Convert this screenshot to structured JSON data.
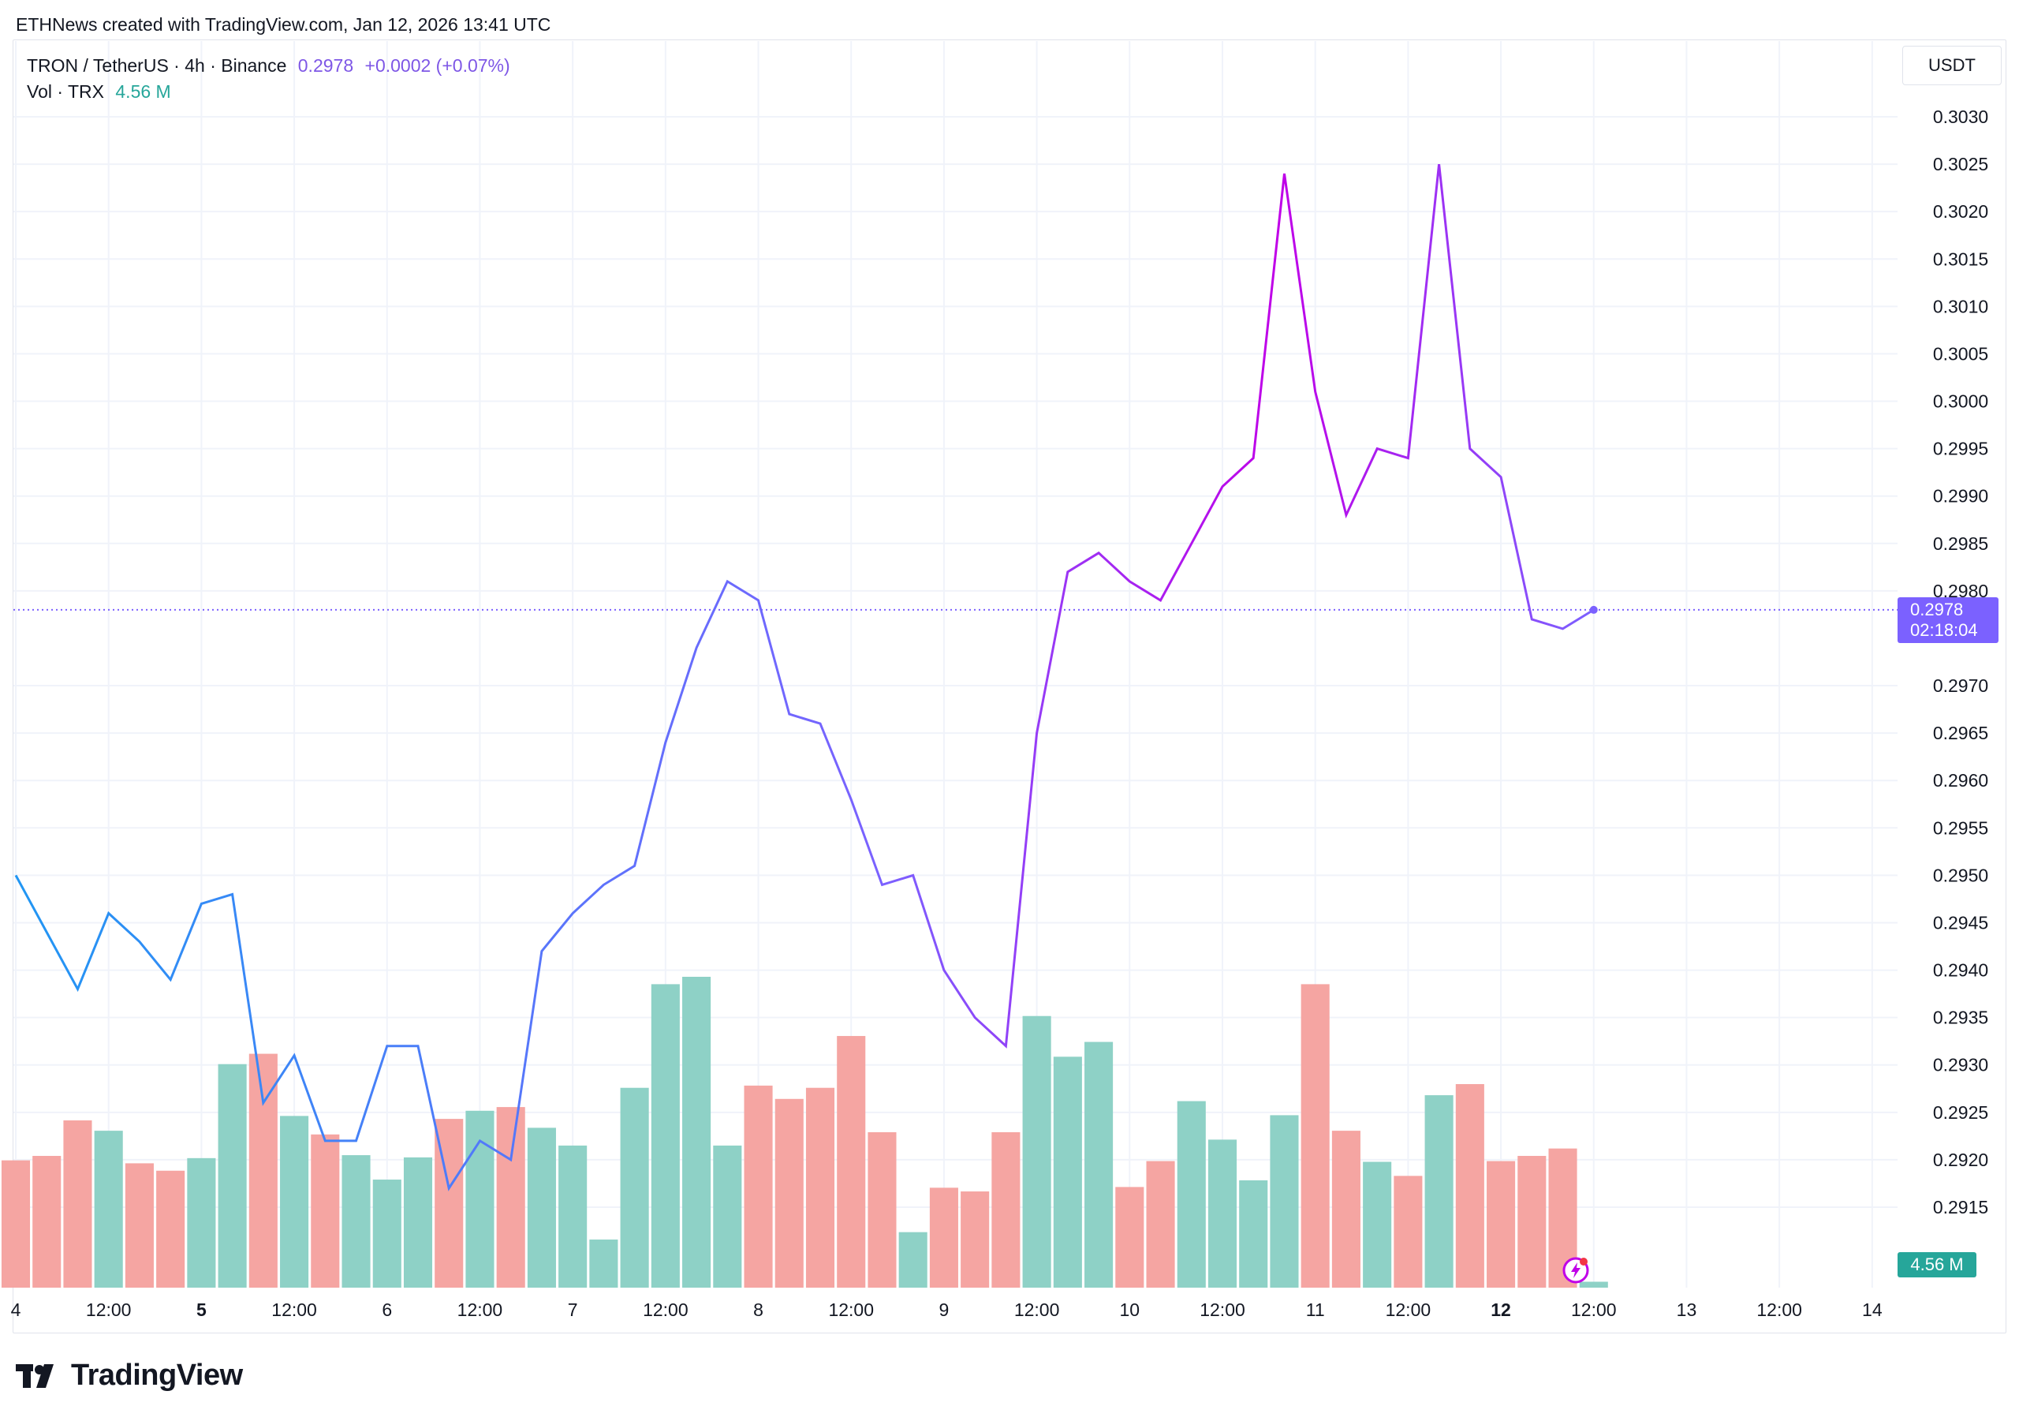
{
  "header": {
    "credit": "ETHNews created with TradingView.com, Jan 12, 2026 13:41 UTC"
  },
  "legend": {
    "symbol": "TRON / TetherUS · 4h · Binance",
    "price": "0.2978",
    "change": "+0.0002 (+0.07%)",
    "vol_label": "Vol · TRX",
    "vol_value": "4.56 M"
  },
  "price_axis": {
    "unit": "USDT"
  },
  "last_price_tag": {
    "price": "0.2978",
    "countdown": "02:18:04"
  },
  "volume_tag": {
    "value": "4.56 M"
  },
  "footer": {
    "brand": "TradingView"
  },
  "colors": {
    "line_start": "#2196f3",
    "line_mid": "#7b61ff",
    "line_end": "#c000e8",
    "vol_up": "#8ed1c6",
    "vol_down": "#f5a5a2",
    "grid": "#f0f3fa",
    "last_price_line": "#7b61ff"
  },
  "chart_data": {
    "type": "line",
    "title": "",
    "xlabel": "",
    "ylabel": "",
    "ylim": [
      0.2908,
      0.3034
    ],
    "yticks": [
      "0.3030",
      "0.3025",
      "0.3020",
      "0.3015",
      "0.3010",
      "0.3005",
      "0.3000",
      "0.2995",
      "0.2990",
      "0.2985",
      "0.2980",
      "0.2970",
      "0.2965",
      "0.2960",
      "0.2955",
      "0.2950",
      "0.2945",
      "0.2940",
      "0.2935",
      "0.2930",
      "0.2925",
      "0.2920",
      "0.2915"
    ],
    "xticks": [
      {
        "label": "4",
        "t": 0.0,
        "bold": false
      },
      {
        "label": "12:00",
        "t": 3.0,
        "bold": false
      },
      {
        "label": "5",
        "t": 6.0,
        "bold": true
      },
      {
        "label": "12:00",
        "t": 9.0,
        "bold": false
      },
      {
        "label": "6",
        "t": 12.0,
        "bold": false
      },
      {
        "label": "12:00",
        "t": 15.0,
        "bold": false
      },
      {
        "label": "7",
        "t": 18.0,
        "bold": false
      },
      {
        "label": "12:00",
        "t": 21.0,
        "bold": false
      },
      {
        "label": "8",
        "t": 24.0,
        "bold": false
      },
      {
        "label": "12:00",
        "t": 27.0,
        "bold": false
      },
      {
        "label": "9",
        "t": 30.0,
        "bold": false
      },
      {
        "label": "12:00",
        "t": 33.0,
        "bold": false
      },
      {
        "label": "10",
        "t": 36.0,
        "bold": false
      },
      {
        "label": "12:00",
        "t": 39.0,
        "bold": false
      },
      {
        "label": "11",
        "t": 42.0,
        "bold": false
      },
      {
        "label": "12:00",
        "t": 45.0,
        "bold": false
      },
      {
        "label": "12",
        "t": 48.0,
        "bold": true
      },
      {
        "label": "12:00",
        "t": 51.0,
        "bold": false
      },
      {
        "label": "13",
        "t": 54.0,
        "bold": false
      },
      {
        "label": "12:00",
        "t": 57.0,
        "bold": false
      },
      {
        "label": "14",
        "t": 60.0,
        "bold": false
      }
    ],
    "xlim": [
      0.0,
      60.4
    ],
    "close": [
      0.295,
      0.2944,
      0.2938,
      0.2946,
      0.2943,
      0.2939,
      0.2947,
      0.2948,
      0.2926,
      0.2931,
      0.2922,
      0.2922,
      0.2932,
      0.2932,
      0.2917,
      0.2922,
      0.292,
      0.2942,
      0.2946,
      0.2949,
      0.2951,
      0.2964,
      0.2974,
      0.2981,
      0.2979,
      0.2967,
      0.2966,
      0.2958,
      0.2949,
      0.295,
      0.294,
      0.2935,
      0.2932,
      0.2965,
      0.2982,
      0.2984,
      0.2981,
      0.2979,
      0.2985,
      0.2991,
      0.2994,
      0.3024,
      0.3001,
      0.2988,
      0.2995,
      0.2994,
      0.3025,
      0.2995,
      0.2992,
      0.2977,
      0.2976,
      0.2978
    ],
    "volume": [
      1.72,
      1.78,
      2.26,
      2.12,
      1.68,
      1.58,
      1.75,
      3.02,
      3.16,
      2.32,
      2.07,
      1.79,
      1.46,
      1.76,
      2.28,
      2.39,
      2.44,
      2.16,
      1.92,
      0.65,
      2.7,
      4.1,
      4.2,
      1.92,
      2.73,
      2.55,
      2.7,
      3.4,
      2.1,
      0.75,
      1.35,
      1.3,
      2.1,
      3.67,
      3.12,
      3.32,
      1.36,
      1.71,
      2.52,
      2.0,
      1.45,
      2.33,
      4.1,
      2.12,
      1.7,
      1.51,
      2.6,
      2.75,
      1.71,
      1.78,
      1.88,
      0.08
    ],
    "volume_up": [
      false,
      false,
      false,
      true,
      false,
      false,
      true,
      true,
      false,
      true,
      false,
      true,
      true,
      true,
      false,
      true,
      false,
      true,
      true,
      true,
      true,
      true,
      true,
      true,
      false,
      false,
      false,
      false,
      false,
      true,
      false,
      false,
      false,
      true,
      true,
      true,
      false,
      false,
      true,
      true,
      true,
      true,
      false,
      false,
      true,
      false,
      true,
      false,
      false,
      false,
      false,
      true
    ],
    "last_price": 0.2978
  }
}
